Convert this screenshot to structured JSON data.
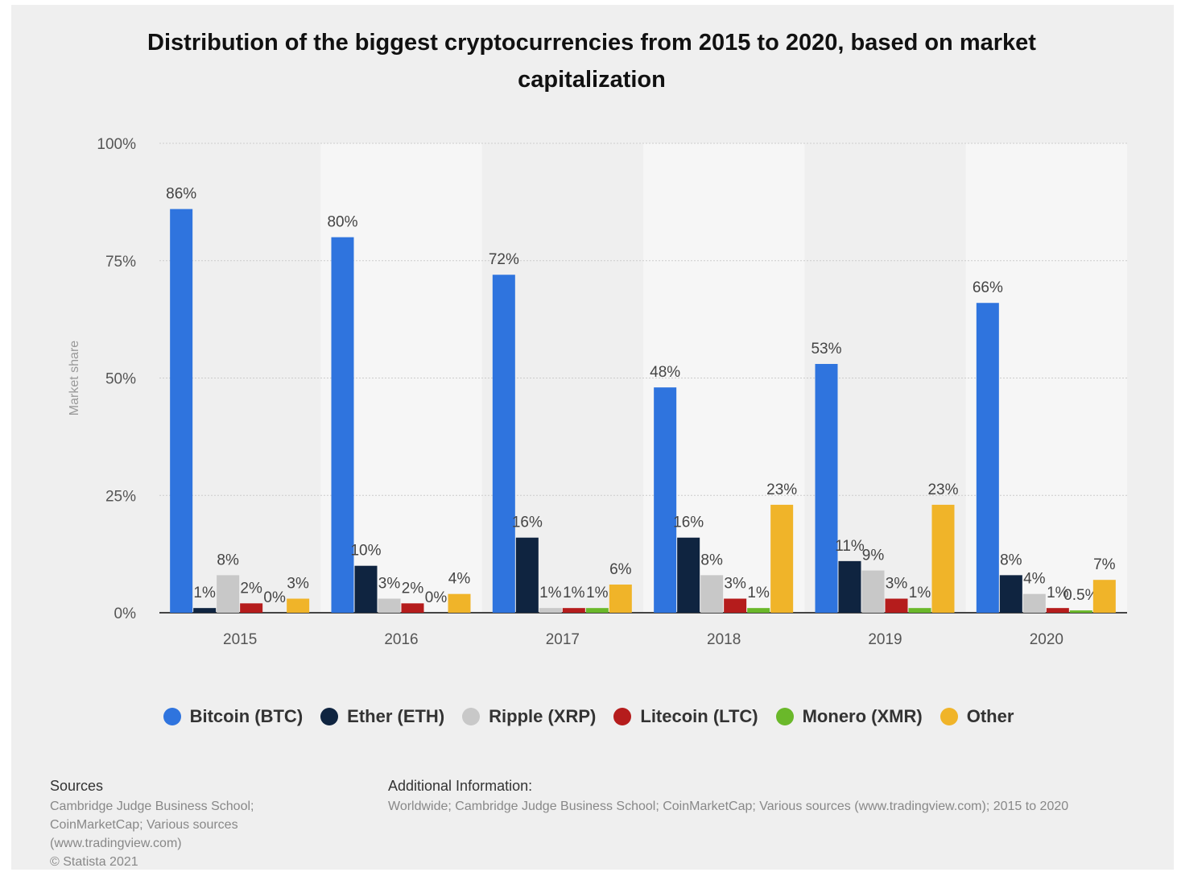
{
  "chart_data": {
    "type": "bar",
    "title": "Distribution of the biggest cryptocurrencies from 2015 to 2020, based on market capitalization",
    "ylabel": "Market share",
    "xlabel": "",
    "ylim": [
      0,
      100
    ],
    "yticks": [
      "0%",
      "25%",
      "50%",
      "75%",
      "100%"
    ],
    "ytick_values": [
      0,
      25,
      50,
      75,
      100
    ],
    "categories": [
      "2015",
      "2016",
      "2017",
      "2018",
      "2019",
      "2020"
    ],
    "series": [
      {
        "name": "Bitcoin (BTC)",
        "color": "#2f74de",
        "values": [
          86,
          80,
          72,
          48,
          53,
          66
        ],
        "labels": [
          "86%",
          "80%",
          "72%",
          "48%",
          "53%",
          "66%"
        ]
      },
      {
        "name": "Ether (ETH)",
        "color": "#0f2440",
        "values": [
          1,
          10,
          16,
          16,
          11,
          8
        ],
        "labels": [
          "1%",
          "10%",
          "16%",
          "16%",
          "11%",
          "8%"
        ]
      },
      {
        "name": "Ripple (XRP)",
        "color": "#c8c8c8",
        "values": [
          8,
          3,
          1,
          8,
          9,
          4
        ],
        "labels": [
          "8%",
          "3%",
          "1%",
          "8%",
          "9%",
          "4%"
        ]
      },
      {
        "name": "Litecoin (LTC)",
        "color": "#b51c1c",
        "values": [
          2,
          2,
          1,
          3,
          3,
          1
        ],
        "labels": [
          "2%",
          "2%",
          "1%",
          "3%",
          "3%",
          "1%"
        ]
      },
      {
        "name": "Monero (XMR)",
        "color": "#6ab82a",
        "values": [
          0,
          0,
          1,
          1,
          1,
          0.5
        ],
        "labels": [
          "0%",
          "0%",
          "1%",
          "1%",
          "1%",
          "0.5%"
        ]
      },
      {
        "name": "Other",
        "color": "#f0b429",
        "values": [
          3,
          4,
          6,
          23,
          23,
          7
        ],
        "labels": [
          "3%",
          "4%",
          "6%",
          "23%",
          "23%",
          "7%"
        ]
      }
    ],
    "grid": true,
    "legend_position": "bottom"
  },
  "footer": {
    "sources_heading": "Sources",
    "sources_lines": [
      "Cambridge Judge Business School;",
      "CoinMarketCap; Various sources",
      "(www.tradingview.com)",
      "© Statista 2021"
    ],
    "additional_heading": "Additional Information:",
    "additional_text": "Worldwide; Cambridge Judge Business School; CoinMarketCap; Various sources (www.tradingview.com); 2015 to 2020"
  }
}
